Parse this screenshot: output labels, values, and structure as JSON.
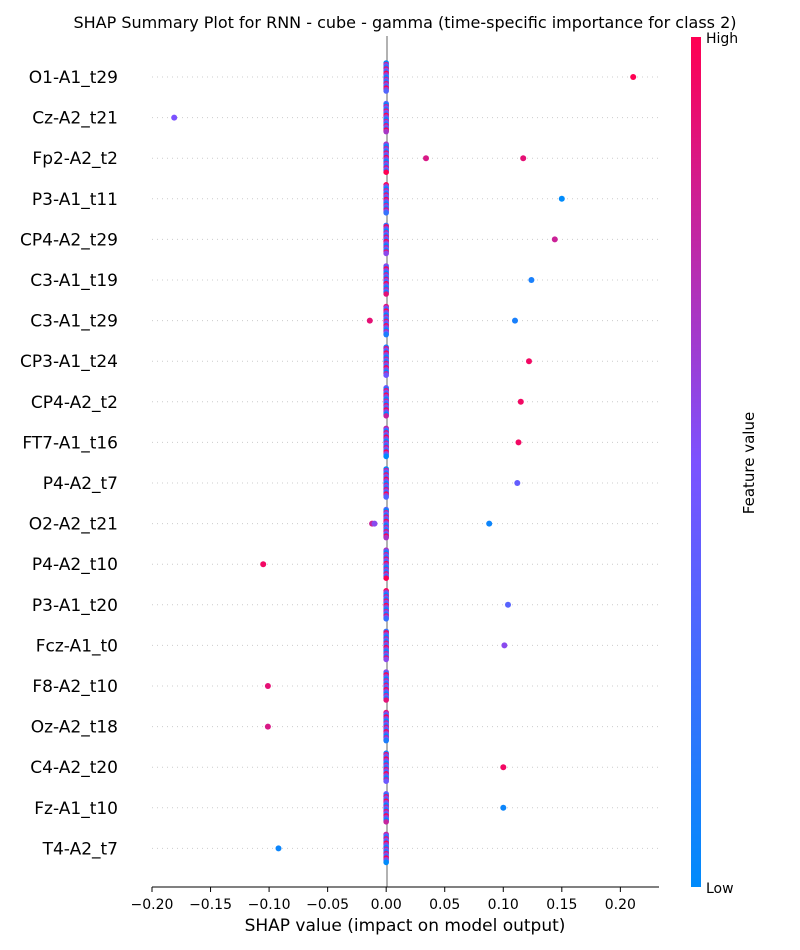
{
  "chart_data": {
    "type": "scatter",
    "title": "SHAP Summary Plot for RNN - cube - gamma (time-specific importance for class 2)",
    "xlabel": "SHAP value (impact on model output)",
    "xlim": [
      -0.2,
      0.233
    ],
    "xticks": [
      "−0.20",
      "−0.15",
      "−0.10",
      "−0.05",
      "0.00",
      "0.05",
      "0.10",
      "0.15",
      "0.20"
    ],
    "xtick_values": [
      -0.2,
      -0.15,
      -0.1,
      -0.05,
      0.0,
      0.05,
      0.1,
      0.15,
      0.2
    ],
    "grid": false,
    "colorbar": {
      "label": "Feature value",
      "high_label": "High",
      "low_label": "Low",
      "colors": [
        "#008bfb",
        "#7c52ff",
        "#ff0052"
      ]
    },
    "features": [
      {
        "name": "O1-A1_t29",
        "outliers": [
          {
            "shap": 0.211,
            "value": 1.0
          }
        ]
      },
      {
        "name": "Cz-A2_t21",
        "outliers": [
          {
            "shap": -0.181,
            "value": 0.5
          }
        ]
      },
      {
        "name": "Fp2-A2_t2",
        "outliers": [
          {
            "shap": 0.034,
            "value": 0.85
          },
          {
            "shap": 0.117,
            "value": 0.9
          }
        ]
      },
      {
        "name": "P3-A1_t11",
        "outliers": [
          {
            "shap": 0.15,
            "value": 0.0
          }
        ]
      },
      {
        "name": "CP4-A2_t29",
        "outliers": [
          {
            "shap": 0.144,
            "value": 0.8
          }
        ]
      },
      {
        "name": "C3-A1_t19",
        "outliers": [
          {
            "shap": 0.124,
            "value": 0.1
          }
        ]
      },
      {
        "name": "C3-A1_t29",
        "outliers": [
          {
            "shap": -0.014,
            "value": 0.9
          },
          {
            "shap": 0.11,
            "value": 0.1
          }
        ]
      },
      {
        "name": "CP3-A1_t24",
        "outliers": [
          {
            "shap": 0.122,
            "value": 0.95
          }
        ]
      },
      {
        "name": "CP4-A2_t2",
        "outliers": [
          {
            "shap": 0.115,
            "value": 0.95
          }
        ]
      },
      {
        "name": "FT7-A1_t16",
        "outliers": [
          {
            "shap": 0.113,
            "value": 0.95
          }
        ]
      },
      {
        "name": "P4-A2_t7",
        "outliers": [
          {
            "shap": 0.112,
            "value": 0.4
          }
        ]
      },
      {
        "name": "O2-A2_t21",
        "outliers": [
          {
            "shap": -0.012,
            "value": 0.8
          },
          {
            "shap": -0.01,
            "value": 0.55
          },
          {
            "shap": 0.088,
            "value": 0.05
          }
        ]
      },
      {
        "name": "P4-A2_t10",
        "outliers": [
          {
            "shap": -0.105,
            "value": 0.95
          }
        ]
      },
      {
        "name": "P3-A1_t20",
        "outliers": [
          {
            "shap": 0.104,
            "value": 0.35
          }
        ]
      },
      {
        "name": "Fcz-A1_t0",
        "outliers": [
          {
            "shap": 0.101,
            "value": 0.55
          }
        ]
      },
      {
        "name": "F8-A2_t10",
        "outliers": [
          {
            "shap": -0.101,
            "value": 0.9
          }
        ]
      },
      {
        "name": "Oz-A2_t18",
        "outliers": [
          {
            "shap": -0.101,
            "value": 0.85
          }
        ]
      },
      {
        "name": "C4-A2_t20",
        "outliers": [
          {
            "shap": 0.1,
            "value": 0.95
          }
        ]
      },
      {
        "name": "Fz-A1_t10",
        "outliers": [
          {
            "shap": 0.1,
            "value": 0.05
          }
        ]
      },
      {
        "name": "T4-A2_t7",
        "outliers": [
          {
            "shap": -0.092,
            "value": 0.05
          }
        ]
      }
    ]
  }
}
